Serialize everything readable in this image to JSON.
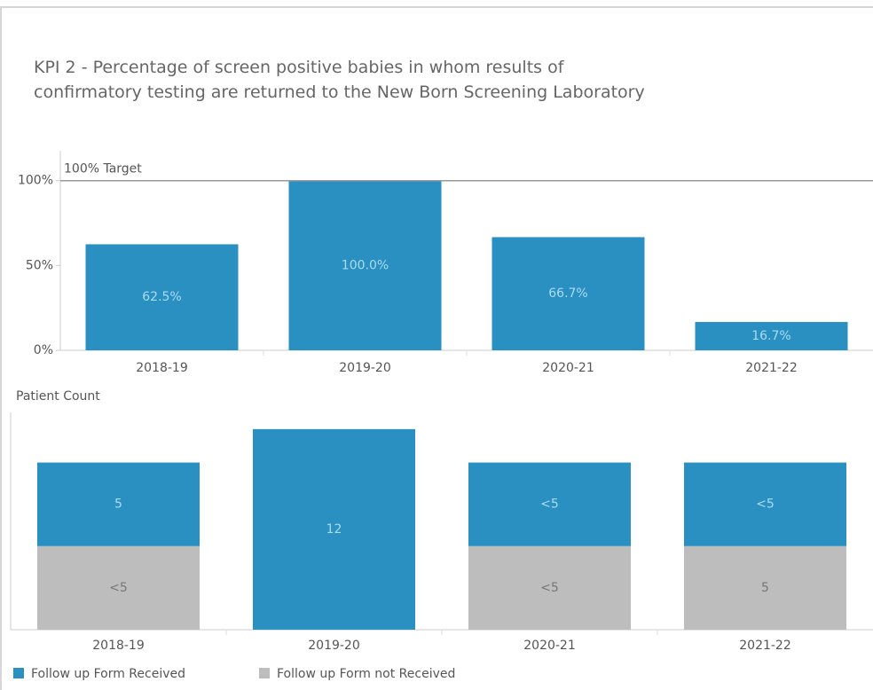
{
  "chart_data": [
    {
      "type": "bar",
      "title": "KPI 2 - Percentage of screen positive babies in whom results of confirmatory testing are returned to the New Born Screening Laboratory",
      "categories": [
        "2018-19",
        "2019-20",
        "2020-21",
        "2021-22"
      ],
      "values": [
        62.5,
        100,
        66.7,
        16.7
      ],
      "value_labels": [
        "62.5%",
        "100.0%",
        "66.7%",
        "16.7%"
      ],
      "color": "#2a8fc1",
      "ylim": [
        0,
        115
      ],
      "yticks": [
        {
          "value": 0,
          "label": "0%"
        },
        {
          "value": 50,
          "label": "50%"
        },
        {
          "value": 100,
          "label": "100%"
        }
      ],
      "reference_line": {
        "value": 100,
        "label": "100% Target"
      }
    },
    {
      "type": "stacked_bar",
      "ylabel": "Patient Count",
      "categories": [
        "2018-19",
        "2019-20",
        "2020-21",
        "2021-22"
      ],
      "series": [
        {
          "name": "Follow up Form Received",
          "color": "#2a8fc1",
          "values": [
            5,
            12,
            5,
            5
          ],
          "value_labels": [
            "5",
            "12",
            "<5",
            "<5"
          ]
        },
        {
          "name": "Follow up Form not Received",
          "color": "#bdbdbd",
          "values": [
            5,
            0,
            5,
            5
          ],
          "value_labels": [
            "<5",
            null,
            "<5",
            "5"
          ]
        }
      ],
      "ylim": [
        0,
        13
      ],
      "legend": "bottom-left"
    }
  ]
}
